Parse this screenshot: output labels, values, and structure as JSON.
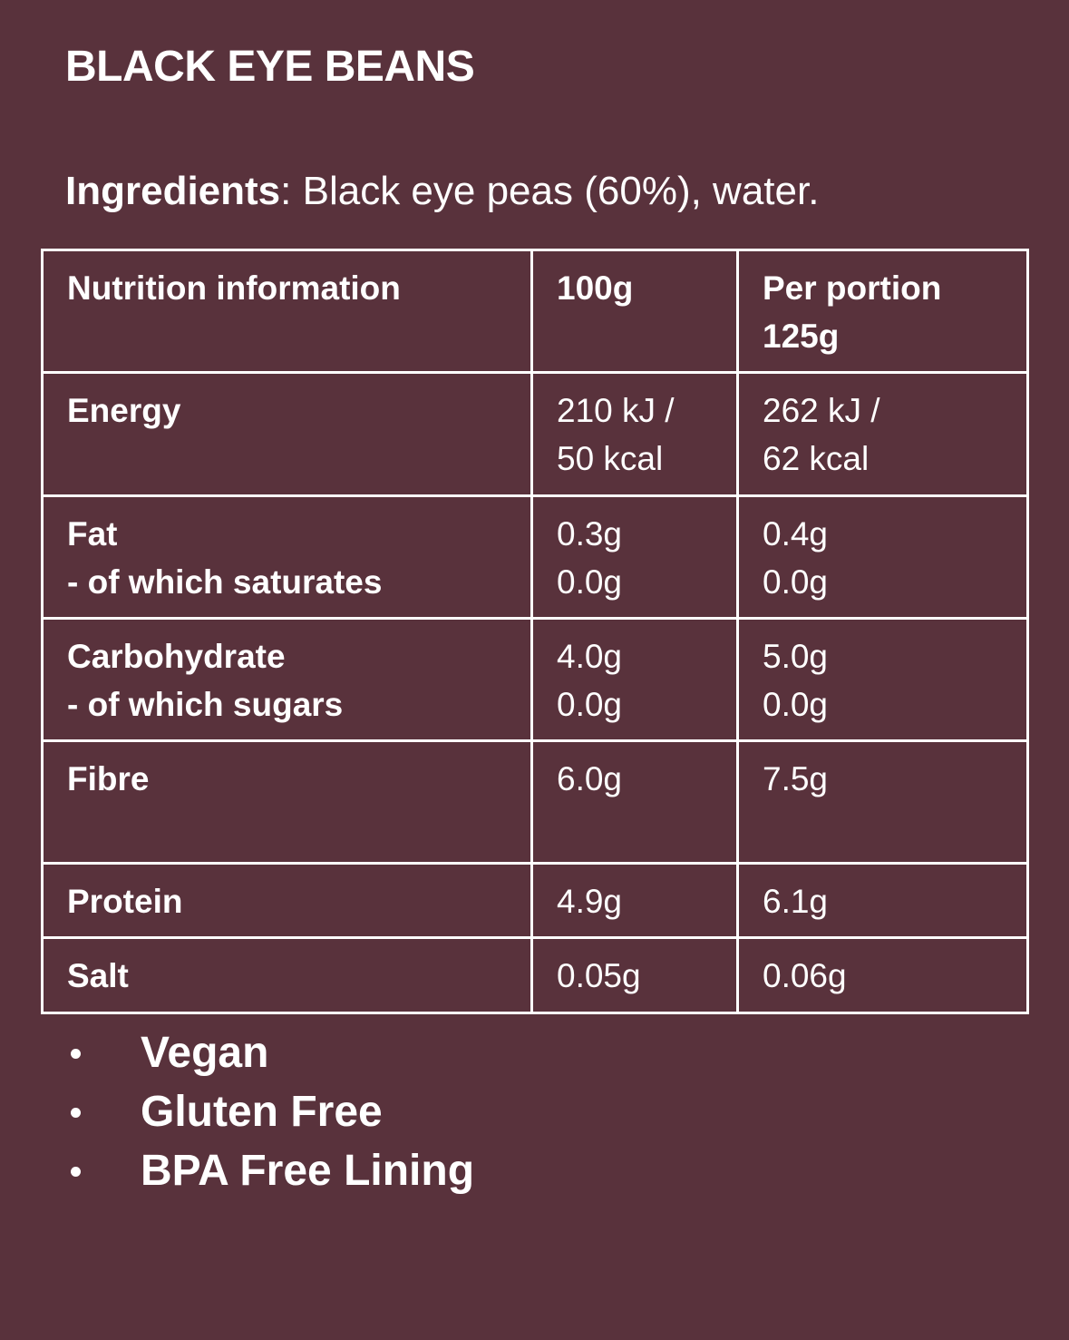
{
  "title": "BLACK EYE BEANS",
  "ingredients": {
    "label": "Ingredients",
    "text": ": Black eye peas (60%), water."
  },
  "table": {
    "header": [
      [
        "Nutrition information"
      ],
      [
        "100g"
      ],
      [
        "Per portion",
        "125g"
      ]
    ],
    "rows": [
      [
        [
          "Energy"
        ],
        [
          "210 kJ /",
          "50 kcal"
        ],
        [
          "262 kJ /",
          "62 kcal"
        ]
      ],
      [
        [
          "Fat",
          "- of which saturates"
        ],
        [
          "0.3g",
          "0.0g"
        ],
        [
          "0.4g",
          "0.0g"
        ]
      ],
      [
        [
          "Carbohydrate",
          "- of which sugars"
        ],
        [
          "4.0g",
          "0.0g"
        ],
        [
          "5.0g",
          "0.0g"
        ]
      ],
      [
        [
          "Fibre"
        ],
        [
          "6.0g"
        ],
        [
          "7.5g"
        ]
      ],
      [
        [
          "Protein"
        ],
        [
          "4.9g"
        ],
        [
          "6.1g"
        ]
      ],
      [
        [
          "Salt"
        ],
        [
          "0.05g"
        ],
        [
          "0.06g"
        ]
      ]
    ]
  },
  "claims": [
    "Vegan",
    "Gluten Free",
    "BPA Free Lining"
  ]
}
